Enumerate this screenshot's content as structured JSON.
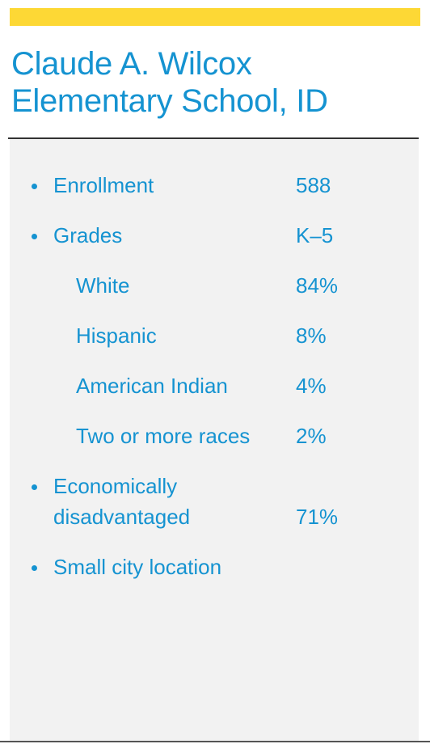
{
  "header": {
    "title_line1": "Claude A. Wilcox",
    "title_line2": "Elementary School, ID",
    "accent_color": "#fdd835",
    "title_color": "#1593d1"
  },
  "facts": {
    "enrollment": {
      "label": "Enrollment",
      "value": "588"
    },
    "grades": {
      "label": "Grades",
      "value": "K–5"
    },
    "white": {
      "label": "White",
      "value": "84%"
    },
    "hispanic": {
      "label": "Hispanic",
      "value": "8%"
    },
    "american_indian": {
      "label": "American Indian",
      "value": "4%"
    },
    "two_or_more": {
      "label": "Two or more races",
      "value": "2%"
    },
    "econ": {
      "label_line1": "Economically",
      "label_line2": "disadvantaged",
      "value": "71%"
    },
    "location": {
      "label": "Small city location"
    }
  },
  "panel_color": "#f2f2f2"
}
